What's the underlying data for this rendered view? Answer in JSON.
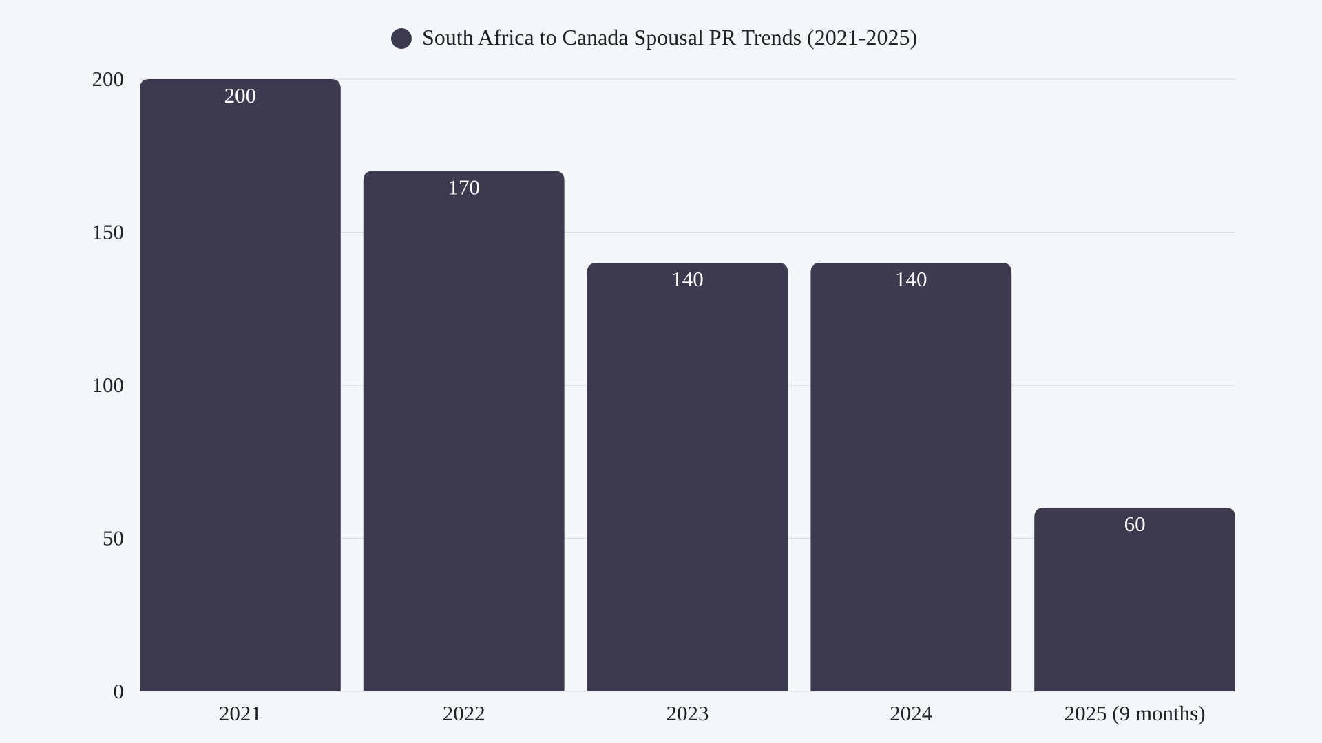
{
  "chart_data": {
    "type": "bar",
    "title": "",
    "legend": {
      "position": "top",
      "entries": [
        "South Africa to Canada Spousal PR Trends (2021-2025)"
      ]
    },
    "categories": [
      "2021",
      "2022",
      "2023",
      "2024",
      "2025 (9 months)"
    ],
    "series": [
      {
        "name": "South Africa to Canada Spousal PR Trends (2021-2025)",
        "values": [
          200,
          170,
          140,
          140,
          60
        ]
      }
    ],
    "data_labels": [
      "200",
      "170",
      "140",
      "140",
      "60"
    ],
    "yticks": [
      "0",
      "50",
      "100",
      "150",
      "200"
    ],
    "ylim": [
      0,
      200
    ],
    "xlabel": "",
    "ylabel": "",
    "grid": true,
    "colors": {
      "bar": "#3d3a50",
      "background": "#f4f7fa",
      "grid": "#d9dde2",
      "text": "#222222",
      "label": "#ffffff"
    }
  }
}
